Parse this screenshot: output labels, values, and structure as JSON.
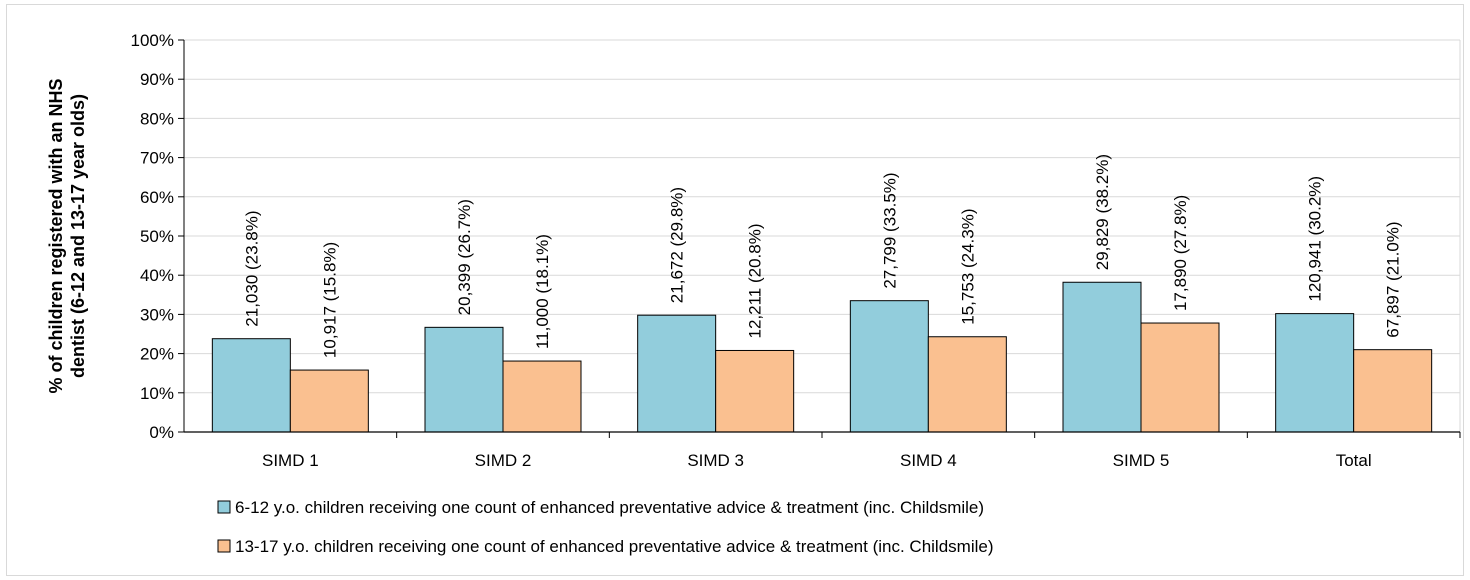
{
  "chart_data": {
    "type": "bar",
    "title": "",
    "xlabel": "",
    "ylabel": "% of children registered with an NHS dentist (6-12 and 13-17 year olds)",
    "ylabel_lines": [
      "% of children registered with an NHS",
      "dentist (6-12 and 13-17 year olds)"
    ],
    "ylim": [
      0,
      100
    ],
    "yticks": [
      "0%",
      "10%",
      "20%",
      "30%",
      "40%",
      "50%",
      "60%",
      "70%",
      "80%",
      "90%",
      "100%"
    ],
    "grid": true,
    "legend_position": "bottom",
    "categories": [
      "SIMD 1",
      "SIMD 2",
      "SIMD 3",
      "SIMD 4",
      "SIMD 5",
      "Total"
    ],
    "series": [
      {
        "name": "6-12 y.o. children receiving one count of enhanced preventative advice & treatment (inc. Childsmile)",
        "color": "#92cddc",
        "values": [
          23.8,
          26.7,
          29.8,
          33.5,
          38.2,
          30.2
        ],
        "labels": [
          "21,030 (23.8%)",
          "20,399 (26.7%)",
          "21,672 (29.8%)",
          "27,799 (33.5%)",
          "29,829 (38.2%)",
          "120,941 (30.2%)"
        ]
      },
      {
        "name": "13-17 y.o. children receiving one count of enhanced preventative advice & treatment (inc. Childsmile)",
        "color": "#fac090",
        "values": [
          15.8,
          18.1,
          20.8,
          24.3,
          27.8,
          21.0
        ],
        "labels": [
          "10,917 (15.8%)",
          "11,000 (18.1%)",
          "12,211 (20.8%)",
          "15,753 (24.3%)",
          "17,890 (27.8%)",
          "67,897 (21.0%)"
        ]
      }
    ]
  }
}
